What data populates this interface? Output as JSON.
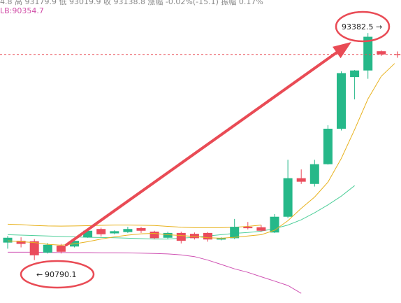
{
  "header": {
    "info_line": "4.8  高 93179.9  低 93019.9  收 93138.8  涨幅 -0.02%(-15.1)  振幅 0.17%",
    "lb_line": "LB:90354.7"
  },
  "colors": {
    "up": "#26b889",
    "down": "#ea4b5b",
    "ma": "#e8b21e",
    "upper_band": "#e8b21e",
    "middle_band": "#4fcf9a",
    "lower_band": "#cf52b3",
    "arrow": "#e94b55",
    "price_line": "#e94b55"
  },
  "chart_data": {
    "type": "candlestick",
    "y_range": [
      90300,
      93600
    ],
    "current_price": 93138.8,
    "annotations": {
      "high_label": "93382.5",
      "low_label": "90790.1"
    },
    "candles": [
      {
        "o": 90990,
        "c": 91045,
        "h": 91065,
        "l": 90920
      },
      {
        "o": 91010,
        "c": 90975,
        "h": 91050,
        "l": 90935
      },
      {
        "o": 91005,
        "c": 90845,
        "h": 91030,
        "l": 90790.1
      },
      {
        "o": 90875,
        "c": 90965,
        "h": 90985,
        "l": 90865
      },
      {
        "o": 90955,
        "c": 90885,
        "h": 90975,
        "l": 90865
      },
      {
        "o": 90945,
        "c": 91010,
        "h": 91025,
        "l": 90935
      },
      {
        "o": 91050,
        "c": 91125,
        "h": 91140,
        "l": 91045
      },
      {
        "o": 91145,
        "c": 91085,
        "h": 91160,
        "l": 91060
      },
      {
        "o": 91095,
        "c": 91120,
        "h": 91130,
        "l": 91085
      },
      {
        "o": 91110,
        "c": 91145,
        "h": 91170,
        "l": 91100
      },
      {
        "o": 91155,
        "c": 91125,
        "h": 91170,
        "l": 91100
      },
      {
        "o": 91115,
        "c": 91040,
        "h": 91125,
        "l": 91030
      },
      {
        "o": 91045,
        "c": 91100,
        "h": 91115,
        "l": 91030
      },
      {
        "o": 91100,
        "c": 91010,
        "h": 91115,
        "l": 90980
      },
      {
        "o": 91090,
        "c": 91040,
        "h": 91105,
        "l": 91025
      },
      {
        "o": 91100,
        "c": 91025,
        "h": 91110,
        "l": 91000
      },
      {
        "o": 91025,
        "c": 91040,
        "h": 91050,
        "l": 91015
      },
      {
        "o": 91040,
        "c": 91170,
        "h": 91260,
        "l": 91030
      },
      {
        "o": 91170,
        "c": 91155,
        "h": 91225,
        "l": 91140
      },
      {
        "o": 91165,
        "c": 91125,
        "h": 91190,
        "l": 91115
      },
      {
        "o": 91105,
        "c": 91285,
        "h": 91315,
        "l": 91100
      },
      {
        "o": 91285,
        "c": 91725,
        "h": 91935,
        "l": 91270
      },
      {
        "o": 91725,
        "c": 91685,
        "h": 91825,
        "l": 91660
      },
      {
        "o": 91660,
        "c": 91885,
        "h": 91935,
        "l": 91630
      },
      {
        "o": 91885,
        "c": 92290,
        "h": 92330,
        "l": 91880
      },
      {
        "o": 92290,
        "c": 92925,
        "h": 92945,
        "l": 92270
      },
      {
        "o": 92880,
        "c": 92955,
        "h": 92960,
        "l": 92625
      },
      {
        "o": 92955,
        "c": 93340,
        "h": 93382.5,
        "l": 92860
      },
      {
        "o": 93175,
        "c": 93138.8,
        "h": 93185,
        "l": 93120
      }
    ],
    "ma_line": [
      91010,
      91000,
      90990,
      90970,
      90960,
      90975,
      91000,
      91030,
      91055,
      91075,
      91090,
      91095,
      91080,
      91070,
      91060,
      91045,
      91040,
      91050,
      91065,
      91080,
      91130,
      91240,
      91380,
      91510,
      91680,
      91950,
      92280,
      92630,
      92890,
      93035
    ],
    "upper_band": [
      91200,
      91195,
      91185,
      91180,
      91178,
      91180,
      91183,
      91187,
      91190,
      91190,
      91188,
      91185,
      91175,
      91165,
      91160,
      91160,
      91160,
      91165,
      91175,
      91190
    ],
    "middle_band": [
      91080,
      91075,
      91070,
      91065,
      91060,
      91055,
      91050,
      91048,
      91045,
      91040,
      91035,
      91030,
      91030,
      91040,
      91050,
      91065,
      91080,
      91095,
      91105,
      91120,
      91150,
      91190,
      91250,
      91330,
      91420,
      91520,
      91640
    ],
    "lower_band": [
      90880,
      90880,
      90880,
      90878,
      90876,
      90875,
      90875,
      90874,
      90873,
      90872,
      90870,
      90866,
      90860,
      90850,
      90830,
      90790,
      90740,
      90690,
      90650,
      90600,
      90550,
      90500,
      90410
    ]
  }
}
